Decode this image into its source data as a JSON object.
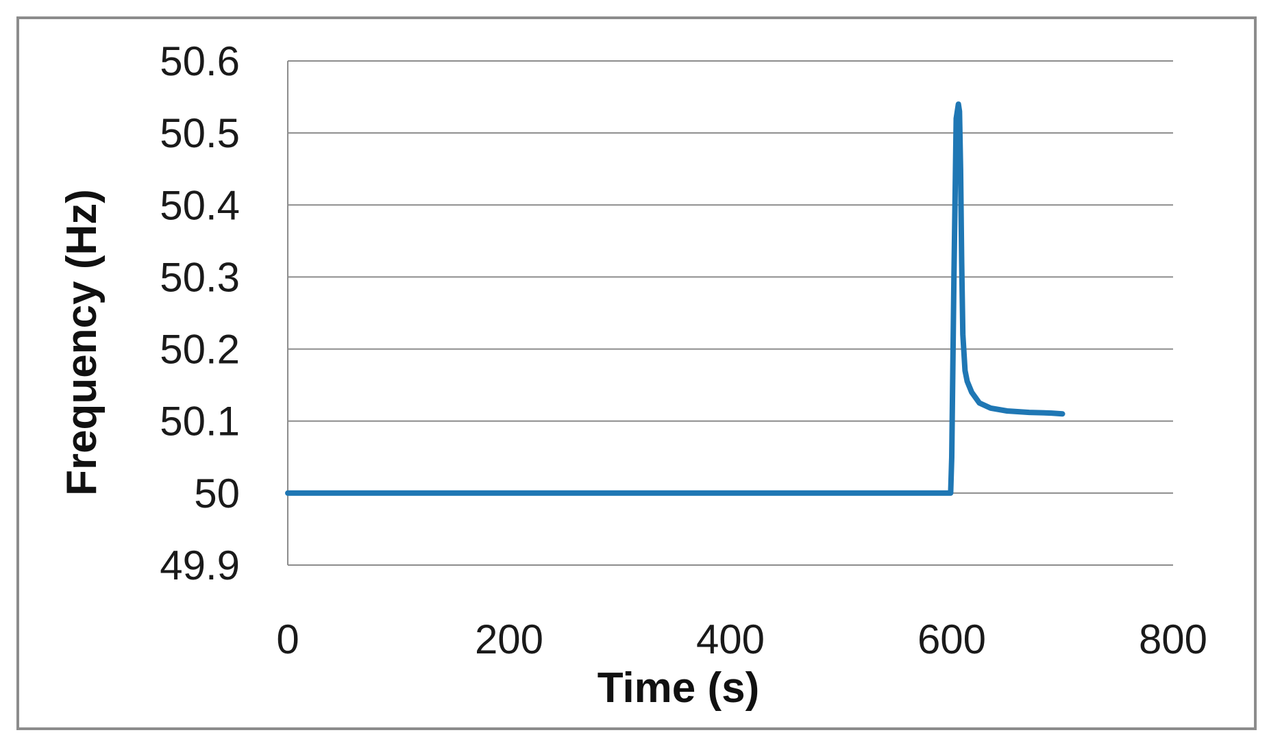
{
  "chart_data": {
    "type": "line",
    "title": "",
    "xlabel": "Time (s)",
    "ylabel": "Frequency (Hz)",
    "xlim": [
      0,
      800
    ],
    "ylim": [
      49.9,
      50.6
    ],
    "x_ticks": [
      "0",
      "200",
      "400",
      "600",
      "800"
    ],
    "y_ticks": [
      "50.6",
      "50.5",
      "50.4",
      "50.3",
      "50.2",
      "50.1",
      "50",
      "49.9"
    ],
    "grid": "horizontal",
    "legend": "none",
    "series": [
      {
        "color": "#1f77b4",
        "x": [
          0,
          100,
          200,
          300,
          400,
          500,
          599,
          600,
          602,
          604,
          605,
          606,
          607,
          608,
          609,
          610,
          612,
          614,
          618,
          625,
          635,
          650,
          670,
          690,
          700
        ],
        "y": [
          50.0,
          50.0,
          50.0,
          50.0,
          50.0,
          50.0,
          50.0,
          50.05,
          50.3,
          50.52,
          50.53,
          50.54,
          50.53,
          50.45,
          50.32,
          50.22,
          50.17,
          50.155,
          50.14,
          50.125,
          50.118,
          50.114,
          50.112,
          50.111,
          50.11
        ]
      }
    ]
  }
}
